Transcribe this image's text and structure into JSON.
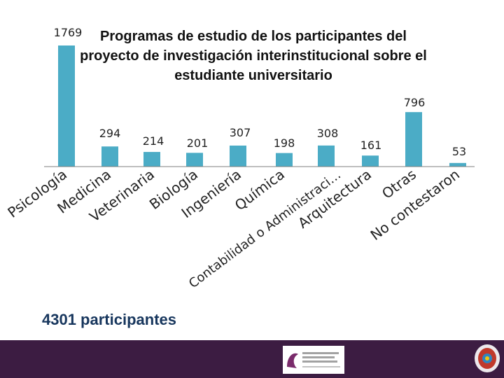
{
  "chart_data": {
    "type": "bar",
    "title": "Programas de estudio de los participantes del proyecto de investigación interinstitucional sobre el estudiante universitario",
    "title_lines": [
      "Programas de estudio de los participantes del",
      "proyecto de investigación interinstitucional sobre el",
      "estudiante universitario"
    ],
    "categories": [
      "Psicología",
      "Medicina",
      "Veterinaria",
      "Biología",
      "Ingeniería",
      "Química",
      "Contabilidad o Administraci…",
      "Arquitectura",
      "Otras",
      "No contestaron"
    ],
    "values": [
      1769,
      294,
      214,
      201,
      307,
      198,
      308,
      161,
      796,
      53
    ],
    "value_labels": [
      "1769",
      "294",
      "214",
      "201",
      "307",
      "198",
      "308",
      "161",
      "796",
      "53"
    ],
    "ylim": [
      0,
      1769
    ],
    "xlabel": "",
    "ylabel": "",
    "grid": false,
    "legend": "none",
    "bar_color": "#4bacc6",
    "axis_color": "#7f7f7f"
  },
  "summary": {
    "total_text": "4301 participantes",
    "color": "#17365d"
  },
  "footer": {
    "band_color": "#3c1c42",
    "logo_text": "Consorcio de Universidades Mexicanas",
    "logo_accent": "#7a2b6b",
    "seal_colors": [
      "#c0392b",
      "#2e86c1",
      "#f1c40f"
    ]
  }
}
